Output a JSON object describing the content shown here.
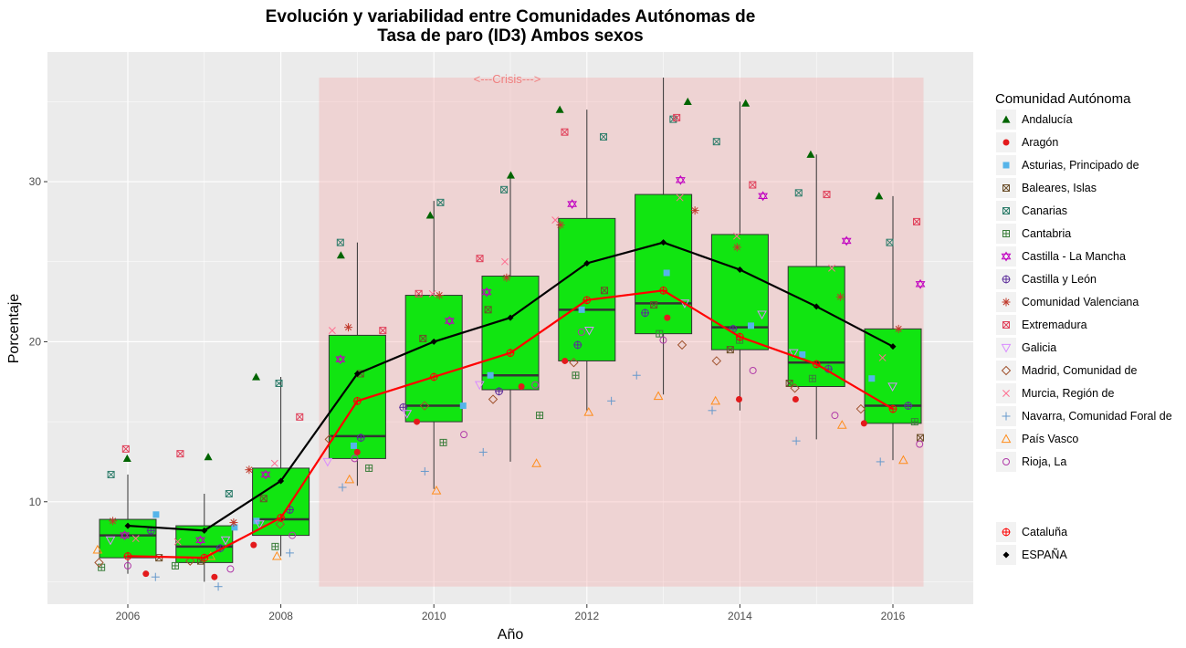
{
  "chart_data": {
    "type": "boxplot",
    "title": "Evolución y variabilidad entre Comunidades Autónomas de",
    "subtitle": "Tasa de paro (ID3) Ambos sexos",
    "xlabel": "Año",
    "ylabel": "Porcentaje",
    "xlim": [
      2004.95,
      2017.05
    ],
    "ylim": [
      3.6,
      38.1
    ],
    "x_ticks": [
      2006,
      2008,
      2010,
      2012,
      2014,
      2016
    ],
    "y_ticks": [
      10,
      20,
      30
    ],
    "grid": true,
    "legend_title": "Comunidad Autónoma",
    "legend_position": "right",
    "annotation": {
      "text": "<---Crisis--->",
      "x_start": 2008.5,
      "x_end": 2016.4,
      "y_start": 4.7,
      "y_end": 36.5,
      "color": "#f08080"
    },
    "colors": {
      "panel": "#ebebeb",
      "grid": "#ffffff",
      "box_fill": "#11e511",
      "box_line": "#333333",
      "espana_line": "#000000",
      "cataluna_line": "#ff0000"
    },
    "years": [
      2006,
      2007,
      2008,
      2009,
      2010,
      2011,
      2012,
      2013,
      2014,
      2015,
      2016
    ],
    "boxes": [
      {
        "x": 2006,
        "lower": 5.5,
        "q1": 6.5,
        "median": 7.9,
        "q3": 8.9,
        "upper": 11.7
      },
      {
        "x": 2007,
        "lower": 5.0,
        "q1": 6.2,
        "median": 7.2,
        "q3": 8.5,
        "upper": 10.5
      },
      {
        "x": 2008,
        "lower": 6.6,
        "q1": 7.9,
        "median": 8.9,
        "q3": 12.1,
        "upper": 17.8
      },
      {
        "x": 2009,
        "lower": 11.0,
        "q1": 12.7,
        "median": 14.1,
        "q3": 20.4,
        "upper": 26.2
      },
      {
        "x": 2010,
        "lower": 10.8,
        "q1": 15.0,
        "median": 16.0,
        "q3": 22.9,
        "upper": 28.8
      },
      {
        "x": 2011,
        "lower": 12.5,
        "q1": 17.0,
        "median": 17.9,
        "q3": 24.1,
        "upper": 30.3
      },
      {
        "x": 2012,
        "lower": 15.7,
        "q1": 18.8,
        "median": 22.0,
        "q3": 27.7,
        "upper": 34.5
      },
      {
        "x": 2013,
        "lower": 16.7,
        "q1": 20.5,
        "median": 22.4,
        "q3": 29.2,
        "upper": 36.5
      },
      {
        "x": 2014,
        "lower": 15.7,
        "q1": 19.5,
        "median": 20.9,
        "q3": 26.7,
        "upper": 35.0
      },
      {
        "x": 2015,
        "lower": 13.9,
        "q1": 17.2,
        "median": 18.7,
        "q3": 24.7,
        "upper": 31.7
      },
      {
        "x": 2016,
        "lower": 12.6,
        "q1": 14.9,
        "median": 16.0,
        "q3": 20.8,
        "upper": 29.1
      }
    ],
    "series": [
      {
        "name": "ESPAÑA",
        "color": "#000000",
        "values": [
          8.5,
          8.2,
          11.3,
          18.0,
          20.0,
          21.5,
          24.9,
          26.2,
          24.5,
          22.2,
          19.7
        ]
      },
      {
        "name": "Cataluña",
        "color": "#ff0000",
        "values": [
          6.6,
          6.5,
          9.0,
          16.3,
          17.8,
          19.3,
          22.6,
          23.2,
          20.3,
          18.6,
          15.8
        ]
      }
    ],
    "points": [
      {
        "name": "Andalucía",
        "shape": "triangle",
        "color": "#006400",
        "values": [
          12.7,
          12.8,
          17.8,
          25.4,
          27.9,
          30.4,
          34.5,
          35.0,
          34.9,
          31.7,
          29.1
        ]
      },
      {
        "name": "Aragón",
        "shape": "circle",
        "color": "#e31a1c",
        "values": [
          5.5,
          5.3,
          7.3,
          13.1,
          15.0,
          17.2,
          18.8,
          21.5,
          16.4,
          16.4,
          14.9
        ]
      },
      {
        "name": "Asturias, Principado de",
        "shape": "square",
        "color": "#56b4e9",
        "values": [
          9.2,
          8.4,
          8.8,
          13.5,
          16.0,
          17.9,
          22.0,
          24.3,
          21.0,
          19.2,
          17.7
        ]
      },
      {
        "name": "Baleares, Islas",
        "shape": "square-x",
        "color": "#6b4f2a",
        "values": [
          6.5,
          6.3,
          10.2,
          18.0,
          20.2,
          22.0,
          23.2,
          22.3,
          19.5,
          17.4,
          14.0
        ]
      },
      {
        "name": "Canarias",
        "shape": "square-x2",
        "color": "#2e7d6b",
        "values": [
          11.7,
          10.5,
          17.4,
          26.2,
          28.7,
          29.5,
          32.8,
          33.9,
          32.5,
          29.3,
          26.2
        ]
      },
      {
        "name": "Cantabria",
        "shape": "square-plus",
        "color": "#3a7d3a",
        "values": [
          5.9,
          6.0,
          7.2,
          12.1,
          13.7,
          15.4,
          17.9,
          20.5,
          20.1,
          17.7,
          15.0
        ]
      },
      {
        "name": "Castilla - La Mancha",
        "shape": "star-david",
        "color": "#c000c0",
        "values": [
          7.9,
          7.6,
          11.7,
          18.9,
          21.3,
          23.1,
          28.6,
          30.1,
          29.1,
          26.3,
          23.6
        ]
      },
      {
        "name": "Castilla y León",
        "shape": "circle-plus",
        "color": "#5b2c9a",
        "values": [
          8.2,
          7.1,
          9.5,
          14.0,
          15.9,
          16.9,
          19.8,
          21.8,
          20.8,
          18.3,
          16.0
        ]
      },
      {
        "name": "Comunidad Valenciana",
        "shape": "asterisk",
        "color": "#c0392b",
        "values": [
          8.8,
          8.7,
          12.0,
          20.9,
          22.9,
          24.0,
          27.3,
          28.2,
          25.9,
          22.8,
          20.8
        ]
      },
      {
        "name": "Extremadura",
        "shape": "square-x",
        "color": "#e0405a",
        "values": [
          13.3,
          13.0,
          15.3,
          20.7,
          23.0,
          25.2,
          33.1,
          34.0,
          29.8,
          29.2,
          27.5
        ]
      },
      {
        "name": "Galicia",
        "shape": "triangle-down",
        "color": "#d98cff",
        "values": [
          7.6,
          7.6,
          8.6,
          12.5,
          15.5,
          17.3,
          20.7,
          22.4,
          21.7,
          19.3,
          17.2
        ]
      },
      {
        "name": "Madrid, Comunidad de",
        "shape": "diamond",
        "color": "#a0522d",
        "values": [
          6.2,
          6.3,
          8.6,
          13.9,
          16.0,
          16.4,
          18.7,
          19.8,
          18.8,
          17.1,
          15.8
        ]
      },
      {
        "name": "Murcia, Región de",
        "shape": "x",
        "color": "#ff6f91",
        "values": [
          7.7,
          7.5,
          12.4,
          20.7,
          23.0,
          25.0,
          27.6,
          29.0,
          26.6,
          24.6,
          19.0
        ]
      },
      {
        "name": "Navarra, Comunidad Foral de",
        "shape": "plus",
        "color": "#6699cc",
        "values": [
          5.3,
          4.7,
          6.8,
          10.9,
          11.9,
          13.1,
          16.3,
          17.9,
          15.7,
          13.8,
          12.5
        ]
      },
      {
        "name": "País Vasco",
        "shape": "triangle-open",
        "color": "#ff8c1a",
        "values": [
          7.0,
          6.6,
          6.6,
          11.4,
          10.7,
          12.4,
          15.6,
          16.6,
          16.3,
          14.8,
          12.6
        ]
      },
      {
        "name": "Rioja, La",
        "shape": "circle-open",
        "color": "#b03aa8",
        "values": [
          6.0,
          5.8,
          7.9,
          12.7,
          14.2,
          17.3,
          20.6,
          20.1,
          18.2,
          15.4,
          13.6
        ]
      }
    ],
    "legend_extra": [
      {
        "name": "Cataluña",
        "shape": "circle-plus",
        "color": "#ff0000"
      },
      {
        "name": "ESPAÑA",
        "shape": "diamond-filled",
        "color": "#000000"
      }
    ]
  }
}
